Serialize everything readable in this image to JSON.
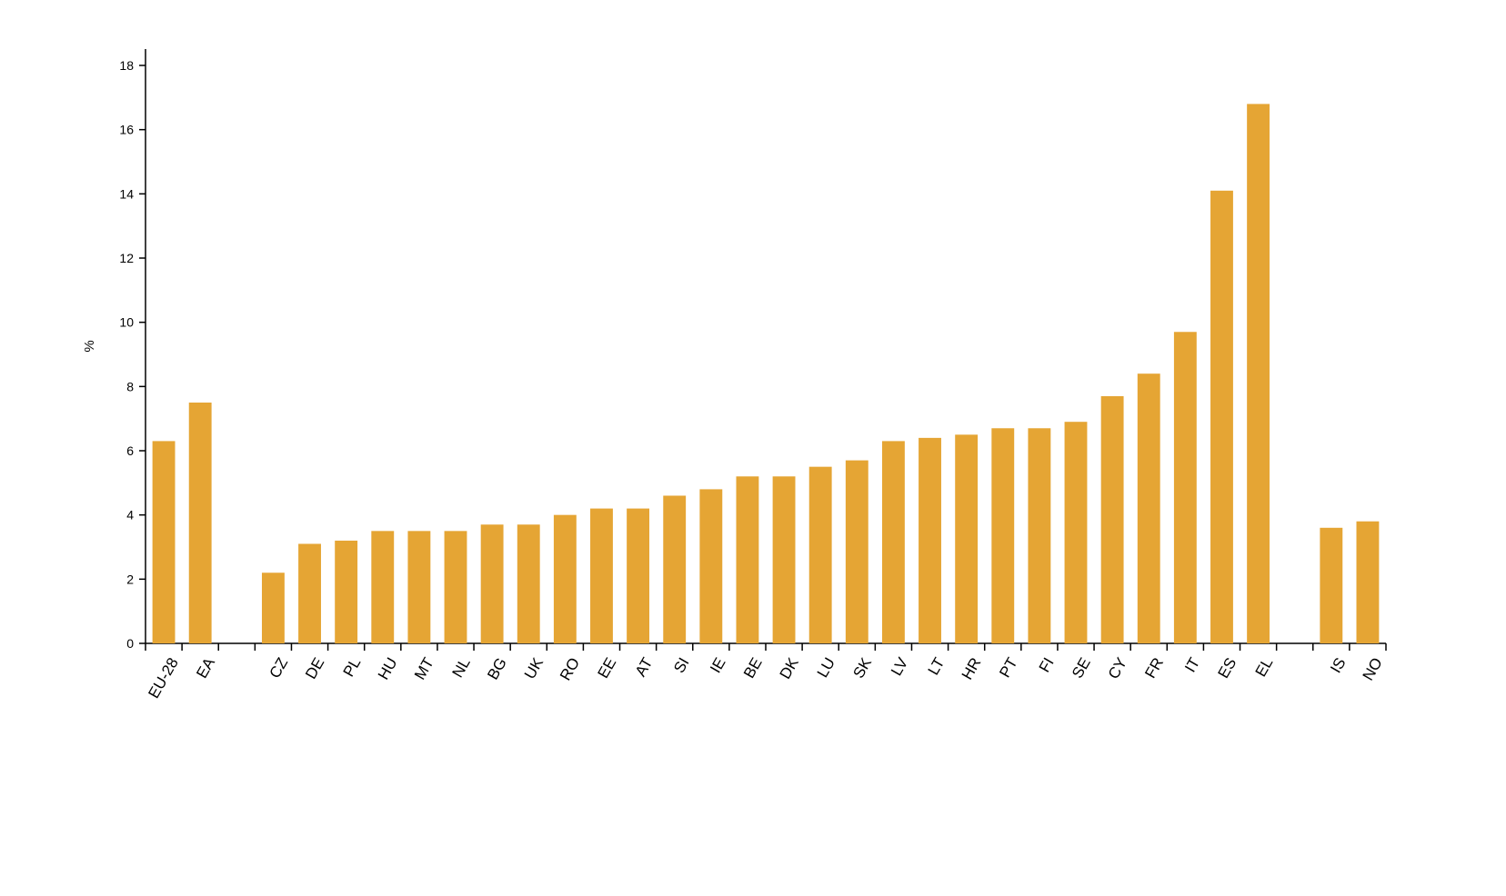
{
  "chart_data": {
    "type": "bar",
    "title": "",
    "xlabel": "",
    "ylabel": "%",
    "ylim": [
      0,
      18
    ],
    "yticks": [
      0,
      2,
      4,
      6,
      8,
      10,
      12,
      14,
      16,
      18
    ],
    "grid": false,
    "legend": "none",
    "bar_color": "#E5A534",
    "categories": [
      "EU-28",
      "EA",
      "",
      "CZ",
      "DE",
      "PL",
      "HU",
      "MT",
      "NL",
      "BG",
      "UK",
      "RO",
      "EE",
      "AT",
      "SI",
      "IE",
      "BE",
      "DK",
      "LU",
      "SK",
      "LV",
      "LT",
      "HR",
      "PT",
      "FI",
      "SE",
      "CY",
      "FR",
      "IT",
      "ES",
      "EL",
      "",
      "IS",
      "NO"
    ],
    "values": [
      6.3,
      7.5,
      null,
      2.2,
      3.1,
      3.2,
      3.5,
      3.5,
      3.5,
      3.7,
      3.7,
      4.0,
      4.2,
      4.2,
      4.6,
      4.8,
      5.2,
      5.2,
      5.5,
      5.7,
      6.3,
      6.4,
      6.5,
      6.7,
      6.7,
      6.9,
      7.7,
      8.4,
      9.7,
      14.1,
      16.8,
      null,
      3.6,
      3.8
    ]
  }
}
